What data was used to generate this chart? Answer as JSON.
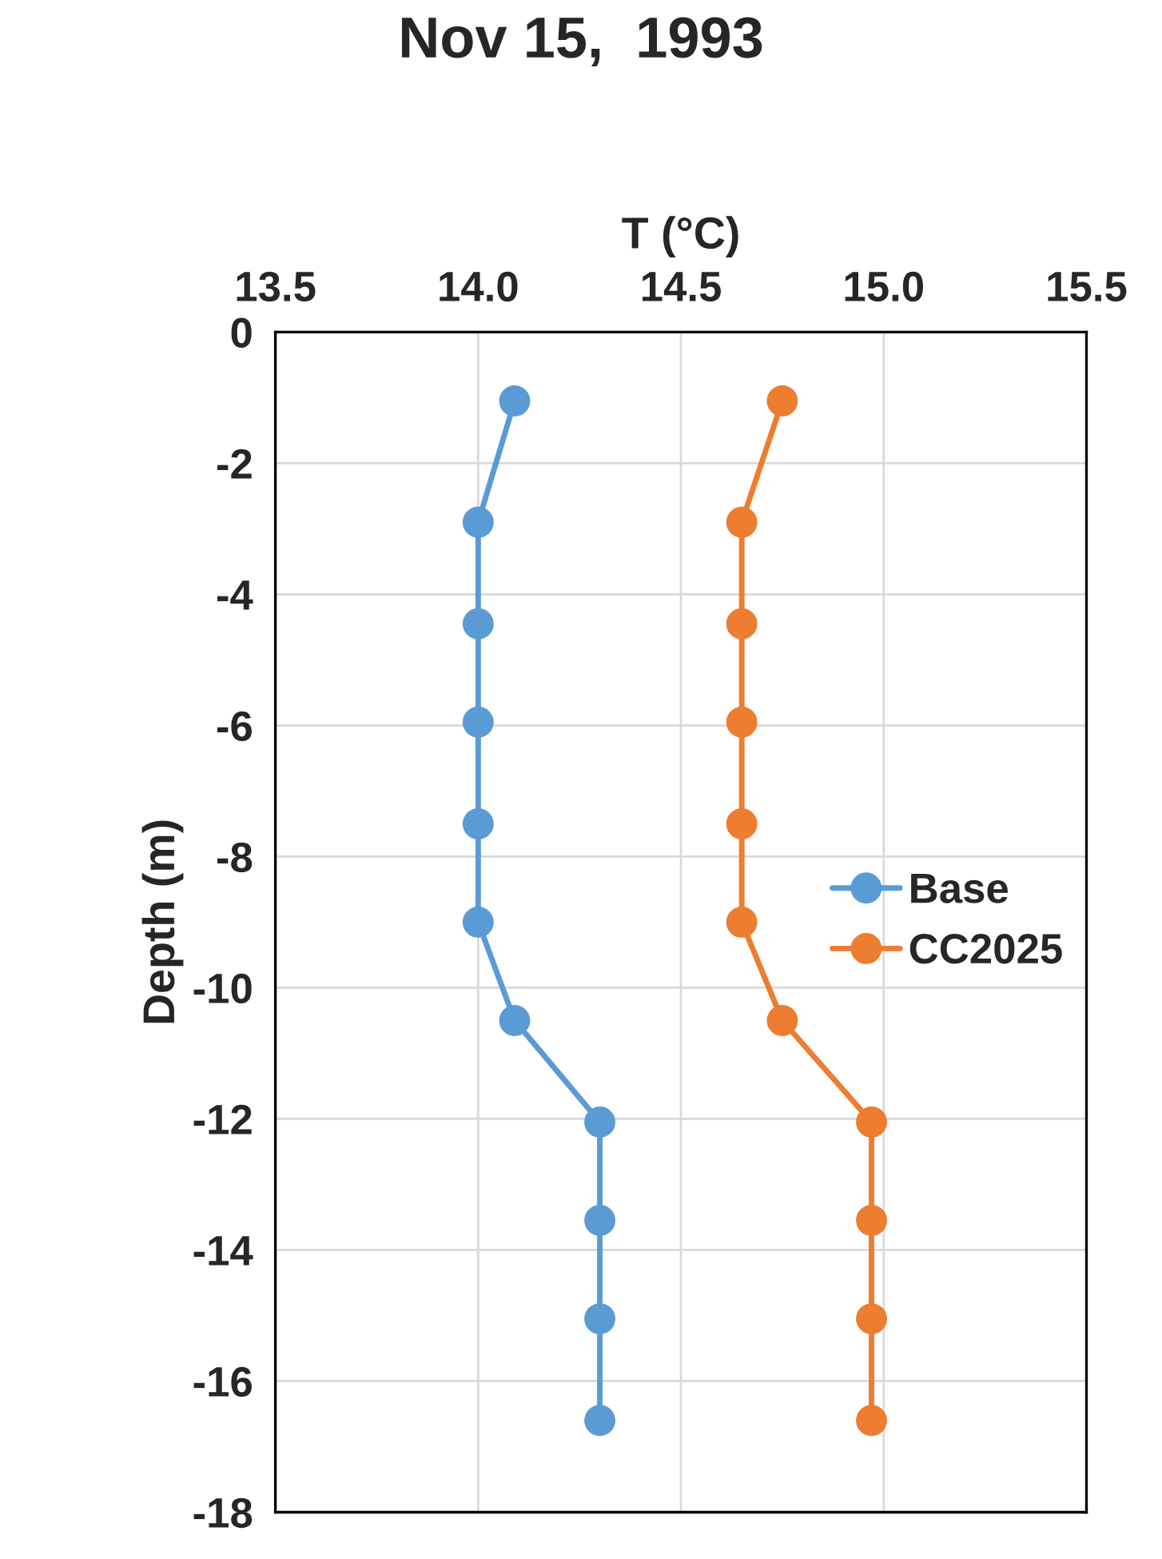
{
  "chart_data": {
    "type": "line",
    "title": "Nov 15,  1993",
    "xlabel": "T (°C)",
    "ylabel": "Depth (m)",
    "series": [
      {
        "name": "Base",
        "color": "#5b9bd5",
        "x": [
          14.09,
          14.0,
          14.0,
          14.0,
          14.0,
          14.0,
          14.09,
          14.3,
          14.3,
          14.3,
          14.3
        ],
        "values": [
          -1.05,
          -2.9,
          -4.45,
          -5.95,
          -7.5,
          -9.0,
          -10.5,
          -12.05,
          -13.55,
          -15.05,
          -16.6
        ]
      },
      {
        "name": "CC2025",
        "color": "#ed7d31",
        "x": [
          14.75,
          14.65,
          14.65,
          14.65,
          14.65,
          14.65,
          14.75,
          14.97,
          14.97,
          14.97,
          14.97
        ],
        "values": [
          -1.05,
          -2.9,
          -4.45,
          -5.95,
          -7.5,
          -9.0,
          -10.5,
          -12.05,
          -13.55,
          -15.05,
          -16.6
        ]
      }
    ],
    "xlim": [
      13.5,
      15.5
    ],
    "xticks": [
      13.5,
      {
        "value": 14,
        "label": "14.0"
      },
      14.5,
      {
        "value": 15,
        "label": "15.0"
      },
      15.5
    ],
    "ylim": [
      -18,
      0
    ],
    "yticks": [
      0,
      -2,
      -4,
      -6,
      -8,
      -10,
      -12,
      -14,
      -16,
      -18
    ],
    "grid": true,
    "legend": "right",
    "marker": "circle",
    "line_style": "solid"
  }
}
